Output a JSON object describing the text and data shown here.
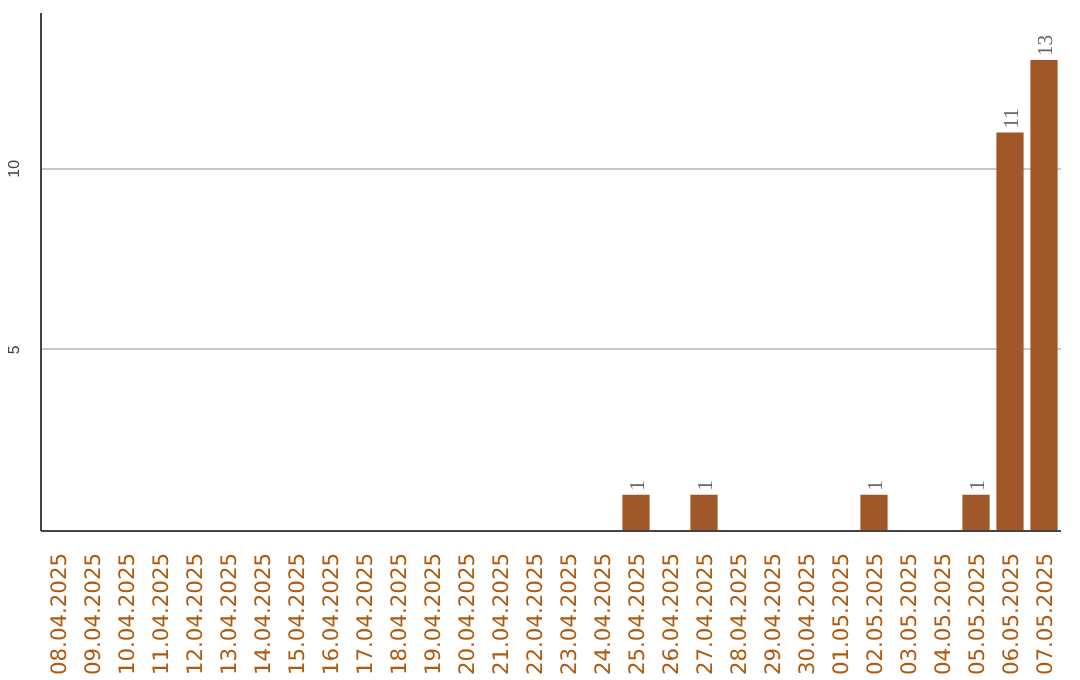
{
  "chart_data": {
    "type": "bar",
    "categories": [
      "08.04.2025",
      "09.04.2025",
      "10.04.2025",
      "11.04.2025",
      "12.04.2025",
      "13.04.2025",
      "14.04.2025",
      "15.04.2025",
      "16.04.2025",
      "17.04.2025",
      "18.04.2025",
      "19.04.2025",
      "20.04.2025",
      "21.04.2025",
      "22.04.2025",
      "23.04.2025",
      "24.04.2025",
      "25.04.2025",
      "26.04.2025",
      "27.04.2025",
      "28.04.2025",
      "29.04.2025",
      "30.04.2025",
      "01.05.2025",
      "02.05.2025",
      "03.05.2025",
      "04.05.2025",
      "05.05.2025",
      "06.05.2025",
      "07.05.2025"
    ],
    "values": [
      0,
      0,
      0,
      0,
      0,
      0,
      0,
      0,
      0,
      0,
      0,
      0,
      0,
      0,
      0,
      0,
      0,
      1,
      0,
      1,
      0,
      0,
      0,
      0,
      1,
      0,
      0,
      1,
      11,
      13
    ],
    "value_labels": [
      null,
      null,
      null,
      null,
      null,
      null,
      null,
      null,
      null,
      null,
      null,
      null,
      null,
      null,
      null,
      null,
      null,
      "1",
      null,
      "1",
      null,
      null,
      null,
      null,
      "1",
      null,
      null,
      "1",
      "11",
      "13"
    ],
    "color": "#a0572a",
    "ylim": [
      0,
      14.3
    ],
    "yticks": [
      5,
      10
    ],
    "grid": "y"
  }
}
